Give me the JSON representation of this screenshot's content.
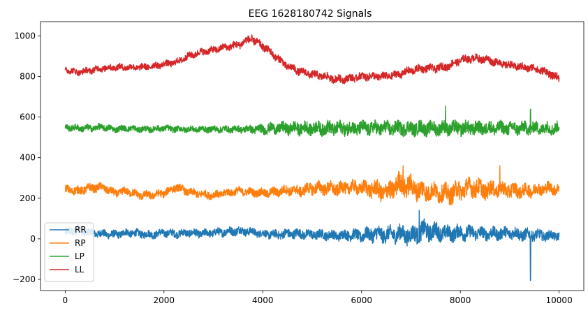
{
  "chart_data": {
    "type": "line",
    "title": "EEG 1628180742 Signals",
    "xlabel": "",
    "ylabel": "",
    "xlim": [
      -500,
      10500
    ],
    "ylim": [
      -255,
      1070
    ],
    "xticks": [
      0,
      2000,
      4000,
      6000,
      8000,
      10000
    ],
    "xtick_labels": [
      "0",
      "2000",
      "4000",
      "6000",
      "8000",
      "10000"
    ],
    "yticks": [
      -200,
      0,
      200,
      400,
      600,
      800,
      1000
    ],
    "ytick_labels": [
      "−200",
      "0",
      "200",
      "400",
      "600",
      "800",
      "1000"
    ],
    "grid": false,
    "legend_position": "lower-left",
    "series": [
      {
        "name": "RR",
        "color": "#1f77b4",
        "x": [
          0,
          250,
          500,
          750,
          1000,
          1250,
          1500,
          1750,
          2000,
          2250,
          2500,
          2750,
          3000,
          3250,
          3500,
          3750,
          4000,
          4250,
          4500,
          4750,
          5000,
          5250,
          5500,
          5750,
          6000,
          6250,
          6500,
          6750,
          7000,
          7250,
          7500,
          7750,
          8000,
          8250,
          8500,
          8750,
          9000,
          9250,
          9500,
          9750,
          10000
        ],
        "y": [
          30,
          45,
          30,
          25,
          20,
          30,
          25,
          20,
          30,
          25,
          30,
          25,
          30,
          35,
          40,
          35,
          25,
          20,
          25,
          25,
          20,
          20,
          15,
          20,
          15,
          25,
          20,
          25,
          15,
          40,
          35,
          25,
          30,
          30,
          25,
          25,
          30,
          20,
          20,
          15,
          15
        ],
        "amplitude": [
          20,
          25,
          18,
          18,
          18,
          18,
          18,
          18,
          18,
          18,
          18,
          18,
          18,
          20,
          20,
          18,
          18,
          20,
          22,
          22,
          22,
          22,
          22,
          25,
          28,
          35,
          35,
          40,
          40,
          45,
          40,
          35,
          35,
          30,
          28,
          28,
          28,
          28,
          25,
          22,
          20
        ]
      },
      {
        "name": "RP",
        "color": "#ff7f0e",
        "x": [
          0,
          250,
          500,
          750,
          1000,
          1250,
          1500,
          1750,
          2000,
          2250,
          2500,
          2750,
          3000,
          3250,
          3500,
          3750,
          4000,
          4250,
          4500,
          4750,
          5000,
          5250,
          5500,
          5750,
          6000,
          6250,
          6500,
          6750,
          7000,
          7250,
          7500,
          7750,
          8000,
          8250,
          8500,
          8750,
          9000,
          9250,
          9500,
          9750,
          10000
        ],
        "y": [
          245,
          235,
          250,
          255,
          225,
          235,
          215,
          215,
          225,
          255,
          230,
          220,
          215,
          225,
          235,
          230,
          225,
          230,
          240,
          235,
          250,
          250,
          245,
          255,
          250,
          245,
          225,
          270,
          255,
          235,
          230,
          220,
          240,
          255,
          240,
          245,
          240,
          235,
          240,
          250,
          245
        ],
        "amplitude": [
          18,
          20,
          20,
          18,
          18,
          18,
          18,
          18,
          18,
          18,
          18,
          18,
          18,
          18,
          18,
          18,
          20,
          22,
          22,
          25,
          28,
          30,
          30,
          30,
          32,
          40,
          45,
          50,
          50,
          45,
          40,
          45,
          45,
          45,
          40,
          35,
          35,
          30,
          30,
          28,
          25
        ]
      },
      {
        "name": "LP",
        "color": "#2ca02c",
        "x": [
          0,
          250,
          500,
          750,
          1000,
          1250,
          1500,
          1750,
          2000,
          2250,
          2500,
          2750,
          3000,
          3250,
          3500,
          3750,
          4000,
          4250,
          4500,
          4750,
          5000,
          5250,
          5500,
          5750,
          6000,
          6250,
          6500,
          6750,
          7000,
          7250,
          7500,
          7750,
          8000,
          8250,
          8500,
          8750,
          9000,
          9250,
          9500,
          9750,
          10000
        ],
        "y": [
          550,
          545,
          545,
          550,
          540,
          545,
          540,
          540,
          545,
          540,
          540,
          540,
          540,
          540,
          540,
          540,
          540,
          545,
          545,
          545,
          545,
          545,
          545,
          545,
          545,
          545,
          545,
          545,
          545,
          545,
          545,
          545,
          545,
          545,
          545,
          545,
          545,
          545,
          545,
          545,
          545
        ],
        "amplitude": [
          15,
          15,
          15,
          15,
          14,
          14,
          14,
          14,
          14,
          14,
          14,
          14,
          15,
          15,
          16,
          18,
          22,
          25,
          28,
          30,
          30,
          32,
          32,
          32,
          32,
          32,
          32,
          32,
          32,
          32,
          32,
          32,
          32,
          32,
          30,
          30,
          30,
          30,
          28,
          28,
          28
        ]
      },
      {
        "name": "LL",
        "color": "#d62728",
        "x": [
          0,
          250,
          500,
          750,
          1000,
          1250,
          1500,
          1750,
          2000,
          2250,
          2500,
          2750,
          3000,
          3250,
          3500,
          3750,
          4000,
          4250,
          4500,
          4750,
          5000,
          5250,
          5500,
          5750,
          6000,
          6250,
          6500,
          6750,
          7000,
          7250,
          7500,
          7750,
          8000,
          8250,
          8500,
          8750,
          9000,
          9250,
          9500,
          9750,
          10000
        ],
        "y": [
          835,
          820,
          830,
          840,
          845,
          845,
          845,
          850,
          860,
          870,
          900,
          920,
          930,
          945,
          955,
          985,
          950,
          900,
          850,
          825,
          810,
          800,
          785,
          790,
          800,
          800,
          800,
          810,
          830,
          840,
          840,
          850,
          880,
          890,
          885,
          870,
          855,
          845,
          840,
          820,
          790
        ],
        "amplitude": [
          14,
          14,
          15,
          15,
          15,
          15,
          15,
          15,
          15,
          15,
          16,
          16,
          16,
          16,
          18,
          18,
          18,
          18,
          18,
          18,
          18,
          18,
          18,
          18,
          18,
          18,
          18,
          18,
          18,
          18,
          18,
          18,
          18,
          18,
          18,
          18,
          18,
          18,
          18,
          18,
          18
        ]
      }
    ],
    "annotations": [
      {
        "series": "RR",
        "x": 9420,
        "y": -205,
        "kind": "spike"
      },
      {
        "series": "RR",
        "x": 7170,
        "y": 140,
        "kind": "spike"
      },
      {
        "series": "LP",
        "x": 7700,
        "y": 655,
        "kind": "spike"
      },
      {
        "series": "LP",
        "x": 9420,
        "y": 638,
        "kind": "spike"
      },
      {
        "series": "RP",
        "x": 6840,
        "y": 360,
        "kind": "spike"
      },
      {
        "series": "RP",
        "x": 8800,
        "y": 360,
        "kind": "spike"
      },
      {
        "series": "LL",
        "x": 3780,
        "y": 1005,
        "kind": "spike"
      }
    ]
  }
}
